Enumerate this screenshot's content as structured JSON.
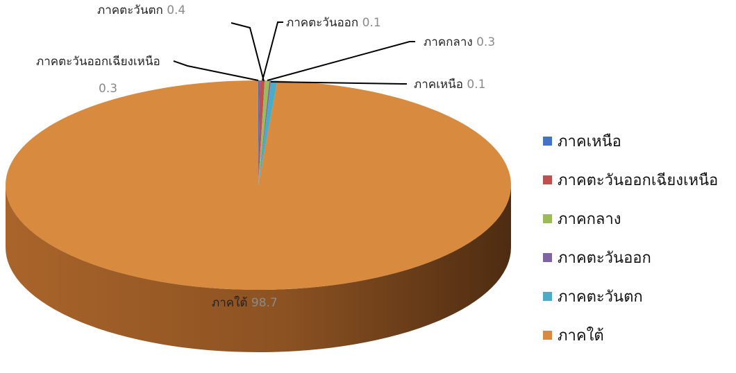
{
  "chart_data": {
    "type": "pie",
    "style": "3d",
    "legend": "right",
    "slices": [
      {
        "label": "ภาคเหนือ",
        "value": 0.1,
        "color": "#4472C4"
      },
      {
        "label": "ภาคตะวันออกเฉียงเหนือ",
        "value": 0.3,
        "color": "#C0504D"
      },
      {
        "label": "ภาคกลาง",
        "value": 0.3,
        "color": "#9BBB59"
      },
      {
        "label": "ภาคตะวันออก",
        "value": 0.1,
        "color": "#8064A2"
      },
      {
        "label": "ภาคตะวันตก",
        "value": 0.4,
        "color": "#4BACC6"
      },
      {
        "label": "ภาคใต้",
        "value": 98.7,
        "color": "#D88A3E"
      }
    ]
  }
}
